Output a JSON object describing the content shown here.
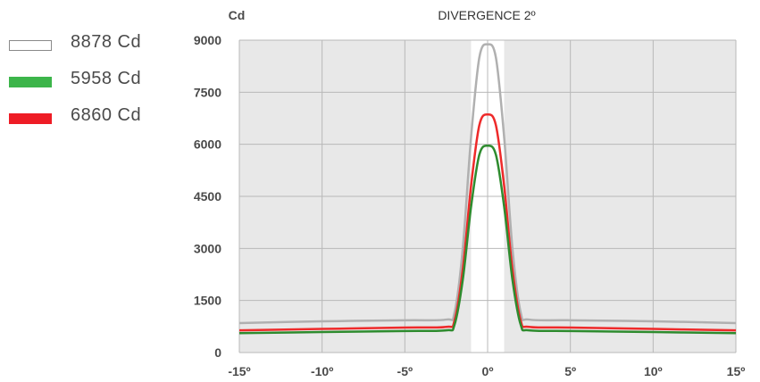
{
  "chart_data": {
    "type": "line",
    "title": "DIVERGENCE 2º",
    "ylabel": "Cd",
    "xlim": [
      -15,
      15
    ],
    "ylim": [
      0,
      9000
    ],
    "x_ticks": [
      -15,
      -10,
      -5,
      0,
      5,
      10,
      15
    ],
    "x_tick_labels": [
      "-15º",
      "-10º",
      "-5º",
      "0º",
      "5º",
      "10º",
      "15º"
    ],
    "y_ticks": [
      0,
      1500,
      3000,
      4500,
      6000,
      7500,
      9000
    ],
    "y_tick_labels": [
      "0",
      "1500",
      "3000",
      "4500",
      "6000",
      "7500",
      "9000"
    ],
    "highlight_band": [
      -1,
      1
    ],
    "grid": true,
    "legend_position": "left",
    "series": [
      {
        "name": "8878 Cd",
        "color": "#b0b0b0",
        "legend_swatch": "outline",
        "x": [
          -15,
          -10,
          -5,
          -2.5,
          -2,
          -1.5,
          -1,
          -0.5,
          0,
          0.5,
          1,
          1.5,
          2,
          2.5,
          5,
          10,
          15
        ],
        "y": [
          850,
          900,
          930,
          950,
          1150,
          3000,
          6200,
          8500,
          8878,
          8500,
          6200,
          3000,
          1150,
          950,
          930,
          900,
          850
        ]
      },
      {
        "name": "5958 Cd",
        "color": "#2e8b2e",
        "legend_color": "#3cb54a",
        "legend_swatch": "solid",
        "x": [
          -15,
          -10,
          -5,
          -2.5,
          -2,
          -1.5,
          -1,
          -0.5,
          0,
          0.5,
          1,
          1.5,
          2,
          2.5,
          5,
          10,
          15
        ],
        "y": [
          560,
          590,
          620,
          640,
          800,
          2100,
          4200,
          5700,
          5958,
          5700,
          4200,
          2100,
          800,
          640,
          620,
          590,
          560
        ]
      },
      {
        "name": "6860 Cd",
        "color": "#ee2a2a",
        "legend_color": "#ee1c25",
        "legend_swatch": "solid",
        "x": [
          -15,
          -10,
          -5,
          -2.5,
          -2,
          -1.5,
          -1,
          -0.5,
          0,
          0.5,
          1,
          1.5,
          2,
          2.5,
          5,
          10,
          15
        ],
        "y": [
          640,
          680,
          720,
          740,
          920,
          2400,
          4800,
          6550,
          6860,
          6550,
          4800,
          2400,
          920,
          740,
          720,
          680,
          640
        ]
      }
    ]
  }
}
